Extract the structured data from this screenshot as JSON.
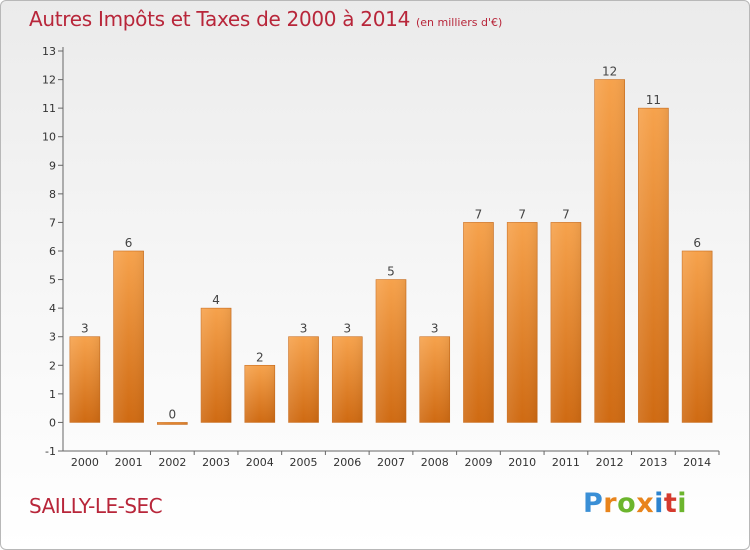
{
  "header": {
    "title": "Autres Impôts et Taxes de 2000 à 2014",
    "unit": "(en milliers d'€)"
  },
  "footer": {
    "commune": "SAILLY-LE-SEC",
    "logo_letters": [
      "P",
      "r",
      "o",
      "x",
      "i",
      "t",
      "i"
    ],
    "logo_colors": [
      "#3a8fd6",
      "#e8841c",
      "#6cb52d",
      "#e8841c",
      "#2c83cf",
      "#d53a2e",
      "#6cb52d"
    ]
  },
  "chart_data": {
    "type": "bar",
    "title": "Autres Impôts et Taxes de 2000 à 2014",
    "subtitle": "(en milliers d'€)",
    "xlabel": "",
    "ylabel": "",
    "categories": [
      "2000",
      "2001",
      "2002",
      "2003",
      "2004",
      "2005",
      "2006",
      "2007",
      "2008",
      "2009",
      "2010",
      "2011",
      "2012",
      "2013",
      "2014"
    ],
    "values": [
      3,
      6,
      0,
      4,
      2,
      3,
      3,
      5,
      3,
      7,
      7,
      7,
      12,
      11,
      6
    ],
    "ylim": [
      -1,
      13
    ],
    "yticks": [
      -1,
      0,
      1,
      2,
      3,
      4,
      5,
      6,
      7,
      8,
      9,
      10,
      11,
      12,
      13
    ],
    "grid": false,
    "legend": "none",
    "colors": {
      "bar_light": "#f6a24c",
      "bar_dark": "#cf6a12",
      "axis": "#666666"
    }
  }
}
